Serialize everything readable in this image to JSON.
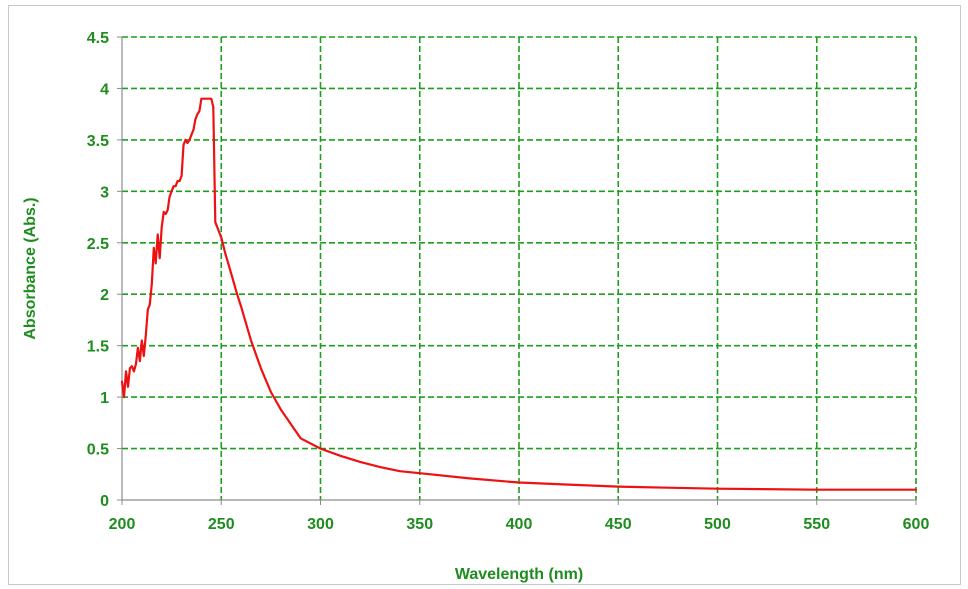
{
  "chart_data": {
    "type": "line",
    "xlabel": "Wavelength (nm)",
    "ylabel": "Absorbance (Abs.)",
    "xlim": [
      200,
      600
    ],
    "ylim": [
      0,
      4.5
    ],
    "x_ticks": [
      "200",
      "250",
      "300",
      "350",
      "400",
      "450",
      "500",
      "550",
      "600"
    ],
    "y_ticks": [
      "0",
      "0.5",
      "1",
      "1.5",
      "2",
      "2.5",
      "3",
      "3.5",
      "4",
      "4.5"
    ],
    "grid": "dashed",
    "colors": {
      "line": "#ee1111",
      "grid": "#1e9e1e",
      "labels": "#1e8c1e",
      "axis": "#8c8c8c"
    },
    "series": [
      {
        "x": [
          200,
          201,
          202,
          203,
          204,
          205,
          206,
          207,
          208,
          209,
          210,
          211,
          212,
          213,
          214,
          215,
          216,
          217,
          218,
          219,
          220,
          221,
          222,
          223,
          224,
          225,
          226,
          227,
          228,
          229,
          230,
          231,
          232,
          233,
          234,
          235,
          236,
          237,
          238,
          239,
          240,
          241,
          242,
          243,
          244,
          245,
          246,
          247,
          248,
          249,
          250,
          252,
          255,
          258,
          260,
          265,
          270,
          275,
          280,
          290,
          300,
          310,
          320,
          330,
          340,
          350,
          375,
          400,
          425,
          450,
          475,
          500,
          550,
          600
        ],
        "y": [
          1.15,
          1.0,
          1.25,
          1.1,
          1.28,
          1.3,
          1.25,
          1.32,
          1.48,
          1.35,
          1.55,
          1.4,
          1.6,
          1.85,
          1.9,
          2.1,
          2.45,
          2.3,
          2.58,
          2.35,
          2.65,
          2.8,
          2.78,
          2.82,
          2.95,
          3.0,
          3.05,
          3.05,
          3.1,
          3.1,
          3.15,
          3.45,
          3.5,
          3.47,
          3.5,
          3.55,
          3.6,
          3.7,
          3.75,
          3.78,
          3.9,
          3.9,
          3.9,
          3.9,
          3.9,
          3.9,
          3.82,
          2.7,
          2.65,
          2.6,
          2.55,
          2.4,
          2.2,
          2.0,
          1.88,
          1.55,
          1.28,
          1.05,
          0.88,
          0.6,
          0.5,
          0.43,
          0.37,
          0.32,
          0.28,
          0.26,
          0.21,
          0.17,
          0.15,
          0.13,
          0.12,
          0.11,
          0.1,
          0.1
        ]
      }
    ]
  }
}
